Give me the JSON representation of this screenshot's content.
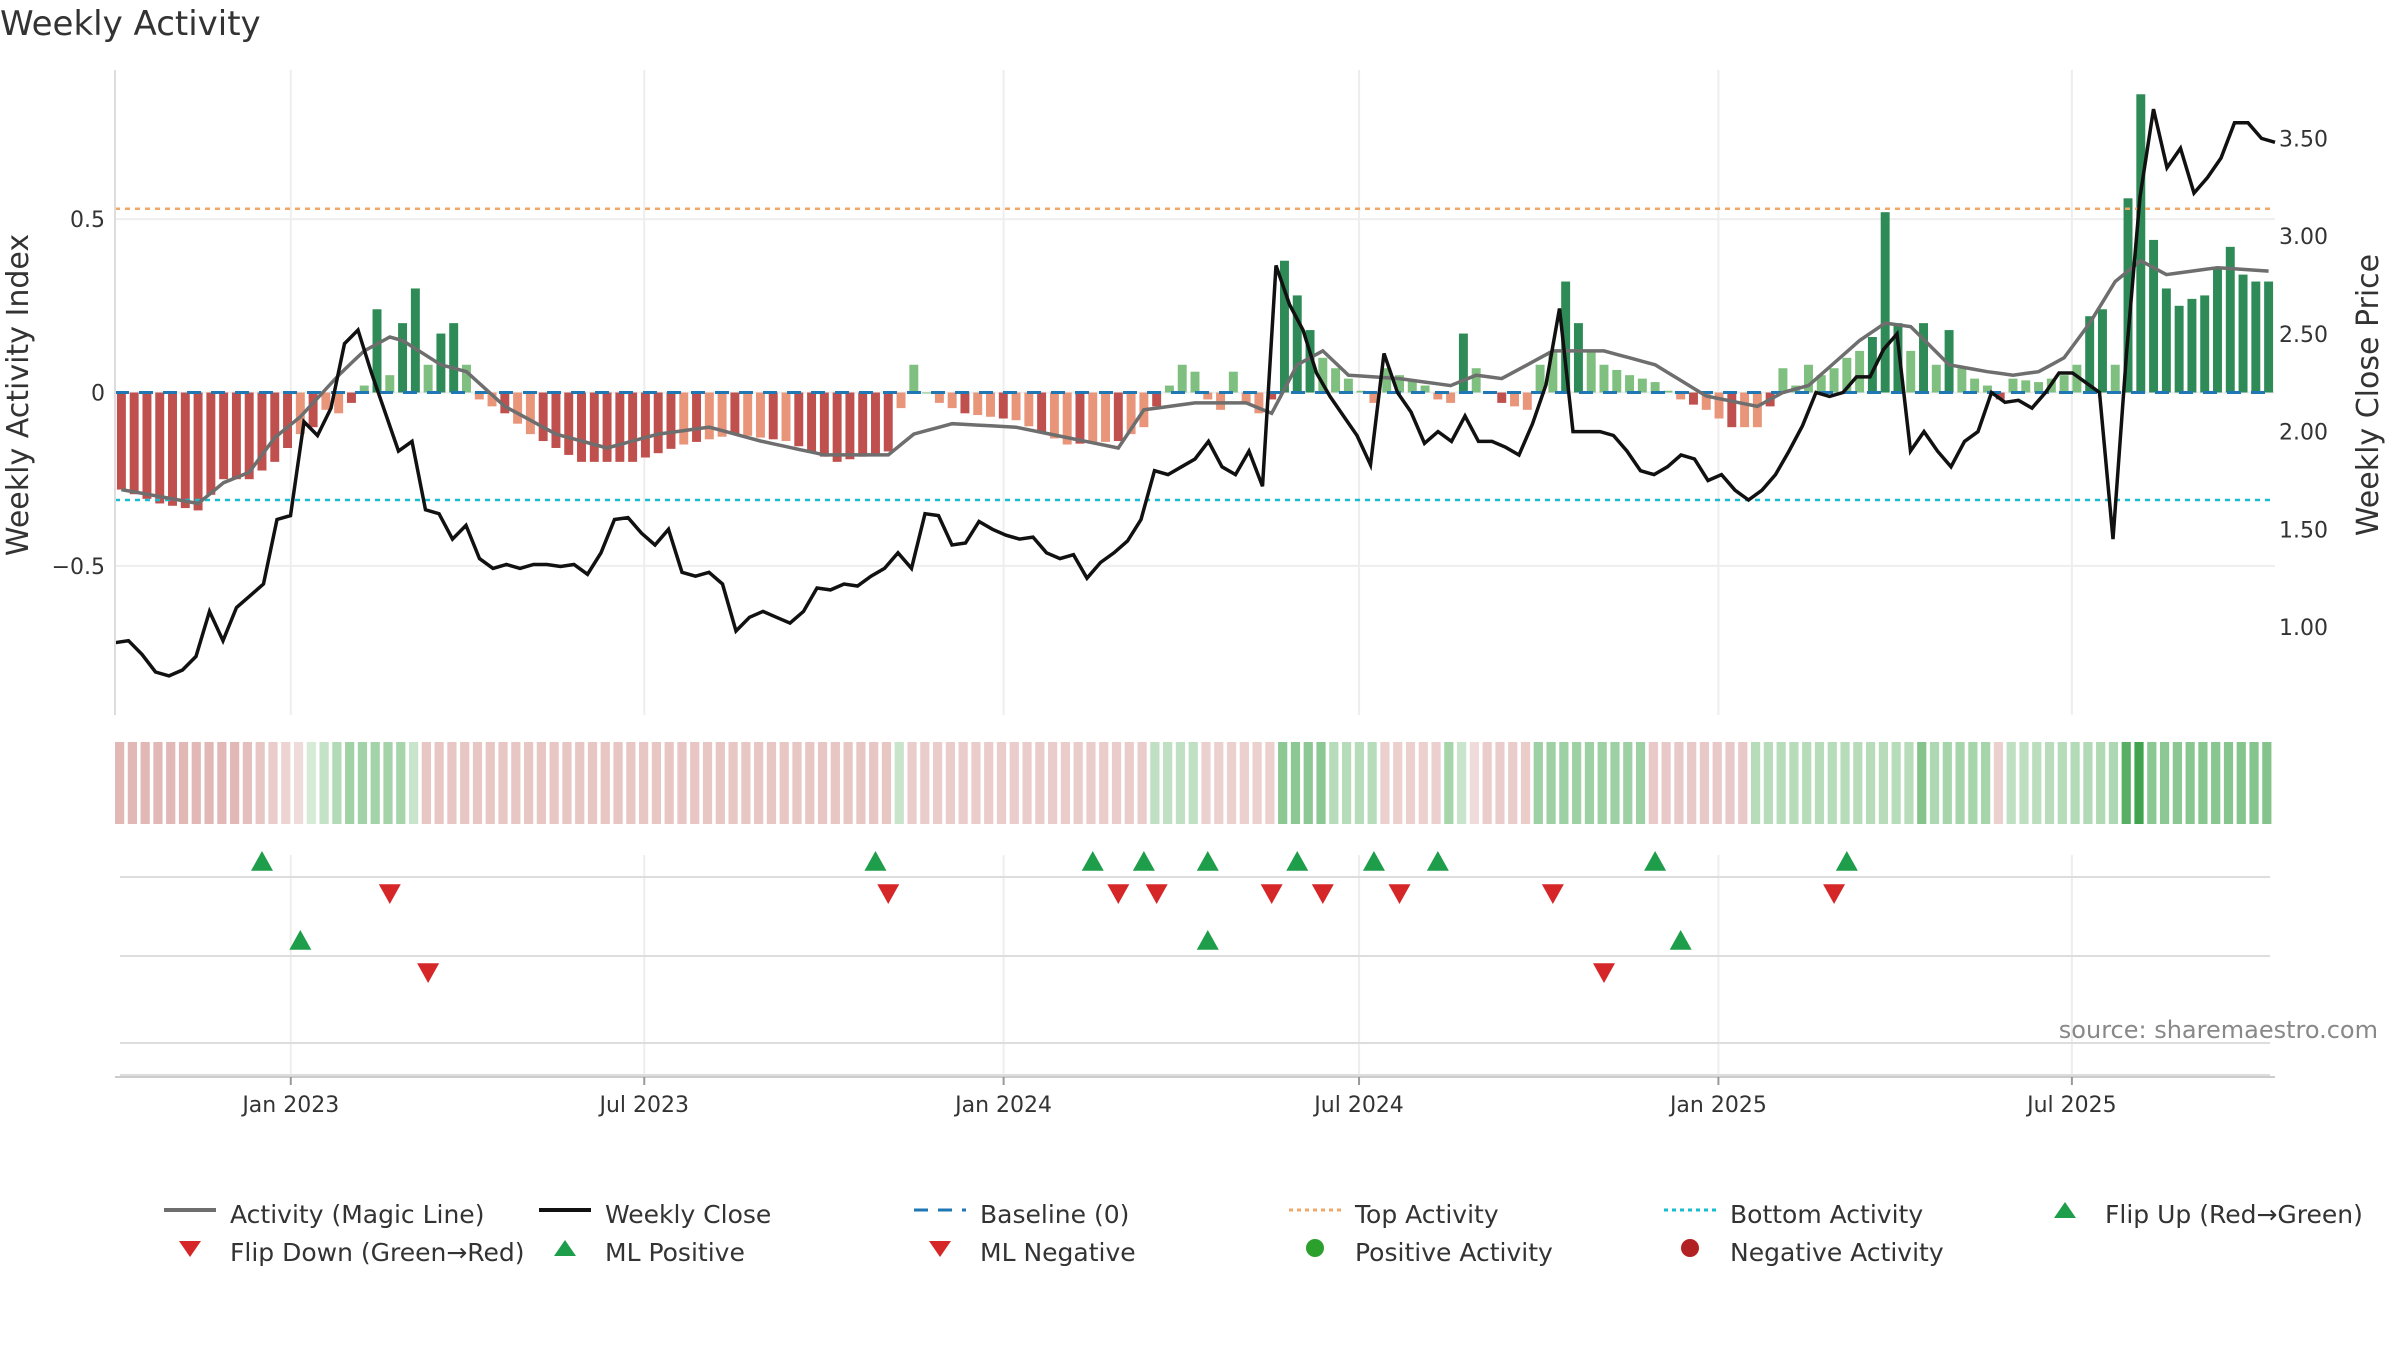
{
  "chart_data": {
    "type": "bar",
    "title": "Weekly Activity",
    "ylabel": "Weekly Activity Index",
    "y2label": "Weekly Close Price",
    "ylim": [
      -0.93,
      0.93
    ],
    "y2lim": [
      0.55,
      3.85
    ],
    "y_ticks": [
      0.5,
      0,
      -0.5
    ],
    "y_tick_labels": [
      "0.5",
      "0",
      "−0.5"
    ],
    "y2_ticks": [
      3.5,
      3.0,
      2.5,
      2.0,
      1.5,
      1.0
    ],
    "y2_tick_labels": [
      "3.50",
      "3.00",
      "2.50",
      "2.00",
      "1.50",
      "1.00"
    ],
    "x_start": "2022-10-03",
    "x_end": "2025-10-13",
    "x_ticks": [
      "2023-01-01",
      "2023-07-01",
      "2024-01-01",
      "2024-07-01",
      "2025-01-01",
      "2025-07-01"
    ],
    "x_tick_labels": [
      "Jan 2023",
      "Jul 2023",
      "Jan 2024",
      "Jul 2024",
      "Jan 2025",
      "Jul 2025"
    ],
    "top_activity": 0.53,
    "bottom_activity": -0.31,
    "activity_keypoints": [
      [
        0,
        -0.28
      ],
      [
        3,
        -0.32
      ],
      [
        6,
        -0.34
      ],
      [
        8,
        -0.25
      ],
      [
        10,
        -0.25
      ],
      [
        12,
        -0.2
      ],
      [
        14,
        -0.12
      ],
      [
        15,
        -0.1
      ],
      [
        16,
        -0.05
      ],
      [
        17,
        -0.06
      ],
      [
        18,
        -0.03
      ],
      [
        19,
        0.02
      ],
      [
        20,
        0.24
      ],
      [
        21,
        0.05
      ],
      [
        22,
        0.2
      ],
      [
        23,
        0.3
      ],
      [
        24,
        0.08
      ],
      [
        25,
        0.17
      ],
      [
        26,
        0.2
      ],
      [
        27,
        0.08
      ],
      [
        28,
        -0.02
      ],
      [
        30,
        -0.06
      ],
      [
        32,
        -0.12
      ],
      [
        36,
        -0.2
      ],
      [
        40,
        -0.2
      ],
      [
        44,
        -0.15
      ],
      [
        48,
        -0.12
      ],
      [
        52,
        -0.14
      ],
      [
        56,
        -0.2
      ],
      [
        60,
        -0.17
      ],
      [
        62,
        0.08
      ],
      [
        63,
        0.0
      ],
      [
        64,
        -0.03
      ],
      [
        66,
        -0.06
      ],
      [
        70,
        -0.08
      ],
      [
        74,
        -0.15
      ],
      [
        78,
        -0.14
      ],
      [
        80,
        -0.1
      ],
      [
        83,
        0.08
      ],
      [
        84,
        0.06
      ],
      [
        85,
        -0.02
      ],
      [
        86,
        -0.05
      ],
      [
        87,
        0.06
      ],
      [
        88,
        -0.03
      ],
      [
        89,
        -0.06
      ],
      [
        90,
        -0.02
      ],
      [
        91,
        0.38
      ],
      [
        92,
        0.28
      ],
      [
        93,
        0.18
      ],
      [
        94,
        0.1
      ],
      [
        96,
        0.04
      ],
      [
        98,
        -0.03
      ],
      [
        99,
        0.07
      ],
      [
        100,
        0.05
      ],
      [
        102,
        0.02
      ],
      [
        103,
        -0.02
      ],
      [
        104,
        -0.03
      ],
      [
        105,
        0.17
      ],
      [
        106,
        0.07
      ],
      [
        107,
        0.0
      ],
      [
        108,
        -0.03
      ],
      [
        110,
        -0.05
      ],
      [
        111,
        0.08
      ],
      [
        112,
        0.12
      ],
      [
        113,
        0.32
      ],
      [
        114,
        0.2
      ],
      [
        115,
        0.12
      ],
      [
        116,
        0.08
      ],
      [
        118,
        0.05
      ],
      [
        120,
        0.03
      ],
      [
        122,
        -0.02
      ],
      [
        124,
        -0.05
      ],
      [
        126,
        -0.1
      ],
      [
        128,
        -0.1
      ],
      [
        129,
        -0.04
      ],
      [
        130,
        0.07
      ],
      [
        131,
        0.02
      ],
      [
        132,
        0.08
      ],
      [
        133,
        0.05
      ],
      [
        134,
        0.07
      ],
      [
        135,
        0.1
      ],
      [
        136,
        0.12
      ],
      [
        137,
        0.16
      ],
      [
        138,
        0.52
      ],
      [
        139,
        0.2
      ],
      [
        140,
        0.12
      ],
      [
        141,
        0.2
      ],
      [
        142,
        0.08
      ],
      [
        143,
        0.18
      ],
      [
        144,
        0.07
      ],
      [
        145,
        0.04
      ],
      [
        146,
        0.02
      ],
      [
        147,
        -0.02
      ],
      [
        148,
        0.04
      ],
      [
        150,
        0.03
      ],
      [
        152,
        0.05
      ],
      [
        153,
        0.08
      ],
      [
        154,
        0.22
      ],
      [
        155,
        0.24
      ],
      [
        156,
        0.08
      ],
      [
        157,
        0.56
      ],
      [
        158,
        0.86
      ],
      [
        159,
        0.44
      ],
      [
        160,
        0.3
      ],
      [
        161,
        0.25
      ],
      [
        162,
        0.27
      ],
      [
        163,
        0.28
      ],
      [
        164,
        0.36
      ],
      [
        165,
        0.42
      ],
      [
        166,
        0.34
      ],
      [
        167,
        0.32
      ],
      [
        168,
        0.32
      ]
    ],
    "magic_keypoints": [
      [
        0,
        -0.28
      ],
      [
        3,
        -0.3
      ],
      [
        6,
        -0.32
      ],
      [
        8,
        -0.26
      ],
      [
        10,
        -0.23
      ],
      [
        12,
        -0.13
      ],
      [
        14,
        -0.07
      ],
      [
        17,
        0.05
      ],
      [
        19,
        0.12
      ],
      [
        21,
        0.16
      ],
      [
        22,
        0.15
      ],
      [
        25,
        0.08
      ],
      [
        27,
        0.06
      ],
      [
        30,
        -0.04
      ],
      [
        34,
        -0.12
      ],
      [
        38,
        -0.16
      ],
      [
        42,
        -0.12
      ],
      [
        46,
        -0.1
      ],
      [
        50,
        -0.14
      ],
      [
        55,
        -0.18
      ],
      [
        60,
        -0.18
      ],
      [
        62,
        -0.12
      ],
      [
        65,
        -0.09
      ],
      [
        70,
        -0.1
      ],
      [
        74,
        -0.13
      ],
      [
        78,
        -0.16
      ],
      [
        80,
        -0.05
      ],
      [
        84,
        -0.03
      ],
      [
        88,
        -0.03
      ],
      [
        90,
        -0.06
      ],
      [
        92,
        0.08
      ],
      [
        94,
        0.12
      ],
      [
        96,
        0.05
      ],
      [
        100,
        0.04
      ],
      [
        104,
        0.02
      ],
      [
        106,
        0.05
      ],
      [
        108,
        0.04
      ],
      [
        112,
        0.12
      ],
      [
        116,
        0.12
      ],
      [
        120,
        0.08
      ],
      [
        124,
        -0.01
      ],
      [
        128,
        -0.04
      ],
      [
        130,
        0.0
      ],
      [
        132,
        0.02
      ],
      [
        136,
        0.15
      ],
      [
        138,
        0.2
      ],
      [
        140,
        0.19
      ],
      [
        143,
        0.08
      ],
      [
        146,
        0.06
      ],
      [
        148,
        0.05
      ],
      [
        150,
        0.06
      ],
      [
        152,
        0.1
      ],
      [
        154,
        0.2
      ],
      [
        156,
        0.32
      ],
      [
        158,
        0.38
      ],
      [
        160,
        0.34
      ],
      [
        164,
        0.36
      ],
      [
        168,
        0.35
      ]
    ],
    "close_keypoints": [
      [
        0,
        0.92
      ],
      [
        1,
        0.93
      ],
      [
        2,
        0.86
      ],
      [
        3,
        0.77
      ],
      [
        4,
        0.75
      ],
      [
        5,
        0.78
      ],
      [
        6,
        0.85
      ],
      [
        7,
        1.08
      ],
      [
        8,
        0.93
      ],
      [
        9,
        1.1
      ],
      [
        10,
        1.16
      ],
      [
        11,
        1.22
      ],
      [
        12,
        1.55
      ],
      [
        13,
        1.57
      ],
      [
        14,
        2.05
      ],
      [
        15,
        1.98
      ],
      [
        16,
        2.12
      ],
      [
        17,
        2.45
      ],
      [
        18,
        2.52
      ],
      [
        19,
        2.3
      ],
      [
        20,
        2.1
      ],
      [
        21,
        1.9
      ],
      [
        22,
        1.95
      ],
      [
        23,
        1.6
      ],
      [
        24,
        1.58
      ],
      [
        25,
        1.45
      ],
      [
        26,
        1.52
      ],
      [
        27,
        1.35
      ],
      [
        28,
        1.3
      ],
      [
        29,
        1.32
      ],
      [
        30,
        1.3
      ],
      [
        31,
        1.32
      ],
      [
        32,
        1.32
      ],
      [
        33,
        1.31
      ],
      [
        34,
        1.32
      ],
      [
        35,
        1.27
      ],
      [
        36,
        1.38
      ],
      [
        37,
        1.55
      ],
      [
        38,
        1.56
      ],
      [
        39,
        1.48
      ],
      [
        40,
        1.42
      ],
      [
        41,
        1.5
      ],
      [
        42,
        1.28
      ],
      [
        43,
        1.26
      ],
      [
        44,
        1.28
      ],
      [
        45,
        1.22
      ],
      [
        46,
        0.98
      ],
      [
        47,
        1.05
      ],
      [
        48,
        1.08
      ],
      [
        49,
        1.05
      ],
      [
        50,
        1.02
      ],
      [
        51,
        1.08
      ],
      [
        52,
        1.2
      ],
      [
        53,
        1.19
      ],
      [
        54,
        1.22
      ],
      [
        55,
        1.21
      ],
      [
        56,
        1.26
      ],
      [
        57,
        1.3
      ],
      [
        58,
        1.38
      ],
      [
        59,
        1.3
      ],
      [
        60,
        1.58
      ],
      [
        61,
        1.57
      ],
      [
        62,
        1.42
      ],
      [
        63,
        1.43
      ],
      [
        64,
        1.54
      ],
      [
        65,
        1.5
      ],
      [
        66,
        1.47
      ],
      [
        67,
        1.45
      ],
      [
        68,
        1.46
      ],
      [
        69,
        1.38
      ],
      [
        70,
        1.35
      ],
      [
        71,
        1.37
      ],
      [
        72,
        1.25
      ],
      [
        73,
        1.33
      ],
      [
        74,
        1.38
      ],
      [
        75,
        1.44
      ],
      [
        76,
        1.55
      ],
      [
        77,
        1.8
      ],
      [
        78,
        1.78
      ],
      [
        79,
        1.82
      ],
      [
        80,
        1.86
      ],
      [
        81,
        1.95
      ],
      [
        82,
        1.82
      ],
      [
        83,
        1.78
      ],
      [
        84,
        1.9
      ],
      [
        85,
        1.72
      ],
      [
        86,
        2.85
      ],
      [
        87,
        2.65
      ],
      [
        88,
        2.52
      ],
      [
        89,
        2.3
      ],
      [
        90,
        2.18
      ],
      [
        91,
        2.08
      ],
      [
        92,
        1.98
      ],
      [
        93,
        1.83
      ],
      [
        94,
        2.4
      ],
      [
        95,
        2.2
      ],
      [
        96,
        2.1
      ],
      [
        97,
        1.94
      ],
      [
        98,
        2.0
      ],
      [
        99,
        1.95
      ],
      [
        100,
        2.08
      ],
      [
        101,
        1.95
      ],
      [
        102,
        1.95
      ],
      [
        103,
        1.92
      ],
      [
        104,
        1.88
      ],
      [
        105,
        2.04
      ],
      [
        106,
        2.24
      ],
      [
        107,
        2.63
      ],
      [
        108,
        2.0
      ],
      [
        109,
        2.0
      ],
      [
        110,
        2.0
      ],
      [
        111,
        1.98
      ],
      [
        112,
        1.9
      ],
      [
        113,
        1.8
      ],
      [
        114,
        1.78
      ],
      [
        115,
        1.82
      ],
      [
        116,
        1.88
      ],
      [
        117,
        1.86
      ],
      [
        118,
        1.75
      ],
      [
        119,
        1.78
      ],
      [
        120,
        1.7
      ],
      [
        121,
        1.65
      ],
      [
        122,
        1.7
      ],
      [
        123,
        1.78
      ],
      [
        124,
        1.9
      ],
      [
        125,
        2.03
      ],
      [
        126,
        2.2
      ],
      [
        127,
        2.18
      ],
      [
        128,
        2.2
      ],
      [
        129,
        2.28
      ],
      [
        130,
        2.28
      ],
      [
        131,
        2.42
      ],
      [
        132,
        2.5
      ],
      [
        133,
        1.9
      ],
      [
        134,
        2.0
      ],
      [
        135,
        1.9
      ],
      [
        136,
        1.82
      ],
      [
        137,
        1.95
      ],
      [
        138,
        2.0
      ],
      [
        139,
        2.2
      ],
      [
        140,
        2.15
      ],
      [
        141,
        2.16
      ],
      [
        142,
        2.12
      ],
      [
        143,
        2.2
      ],
      [
        144,
        2.3
      ],
      [
        145,
        2.3
      ],
      [
        146,
        2.25
      ],
      [
        147,
        2.2
      ],
      [
        148,
        1.45
      ],
      [
        149,
        2.4
      ],
      [
        150,
        3.2
      ],
      [
        151,
        3.65
      ],
      [
        152,
        3.35
      ],
      [
        153,
        3.45
      ],
      [
        154,
        3.22
      ],
      [
        155,
        3.3
      ],
      [
        156,
        3.4
      ],
      [
        157,
        3.58
      ],
      [
        158,
        3.58
      ],
      [
        159,
        3.5
      ],
      [
        160,
        3.48
      ]
    ],
    "heat_intensity_keypoints": [
      [
        0,
        -0.55
      ],
      [
        9,
        -0.55
      ],
      [
        10,
        -0.45
      ],
      [
        18,
        0.38
      ],
      [
        22,
        0.35
      ],
      [
        23,
        0.15
      ],
      [
        24,
        -0.35
      ],
      [
        60,
        -0.35
      ],
      [
        61,
        0.15
      ],
      [
        62,
        -0.25
      ],
      [
        80,
        -0.25
      ],
      [
        81,
        0.2
      ],
      [
        84,
        0.2
      ],
      [
        85,
        -0.2
      ],
      [
        90,
        -0.2
      ],
      [
        91,
        0.5
      ],
      [
        94,
        0.5
      ],
      [
        95,
        0.25
      ],
      [
        98,
        0.25
      ],
      [
        99,
        -0.2
      ],
      [
        103,
        -0.2
      ],
      [
        104,
        0.35
      ],
      [
        107,
        -0.25
      ],
      [
        110,
        -0.25
      ],
      [
        111,
        0.4
      ],
      [
        119,
        0.4
      ],
      [
        120,
        -0.3
      ],
      [
        127,
        -0.3
      ],
      [
        128,
        0.25
      ],
      [
        140,
        0.25
      ],
      [
        141,
        0.55
      ],
      [
        142,
        0.3
      ],
      [
        143,
        0.35
      ],
      [
        146,
        0.35
      ],
      [
        147,
        -0.2
      ],
      [
        148,
        0.2
      ],
      [
        156,
        0.3
      ],
      [
        157,
        0.8
      ],
      [
        158,
        0.95
      ],
      [
        159,
        0.5
      ],
      [
        168,
        0.55
      ]
    ],
    "ml_flip_up_weeks": [
      11,
      59,
      76,
      80,
      85,
      92,
      98,
      103,
      120,
      135
    ],
    "ml_flip_down_weeks": [
      21,
      60,
      78,
      81,
      90,
      94,
      100,
      112,
      134
    ],
    "activity_flip_up_weeks": [
      14,
      85,
      122
    ],
    "activity_flip_down_weeks": [
      24,
      116
    ],
    "legend": [
      "Activity (Magic Line)",
      "Weekly Close",
      "Baseline (0)",
      "Top Activity",
      "Bottom Activity",
      "Flip Up (Red→Green)",
      "Flip Down (Green→Red)",
      "ML Positive",
      "ML Negative",
      "Positive Activity",
      "Negative Activity"
    ],
    "source": "source: sharemaestro.com"
  },
  "colors": {
    "pos_bar_dark": "#2e8b57",
    "pos_bar_light": "#7fbf7f",
    "neg_bar_dark": "#c0504d",
    "neg_bar_light": "#e8957a",
    "magic_line": "#6e6e6e",
    "close_line": "#111111",
    "baseline": "#1f77b4",
    "top_activity": "#f0a868",
    "bottom_activity": "#17becf",
    "up_marker": "#1e9e4a",
    "down_marker": "#d62728",
    "positive_dot": "#2ca02c",
    "negative_dot": "#b22222"
  }
}
